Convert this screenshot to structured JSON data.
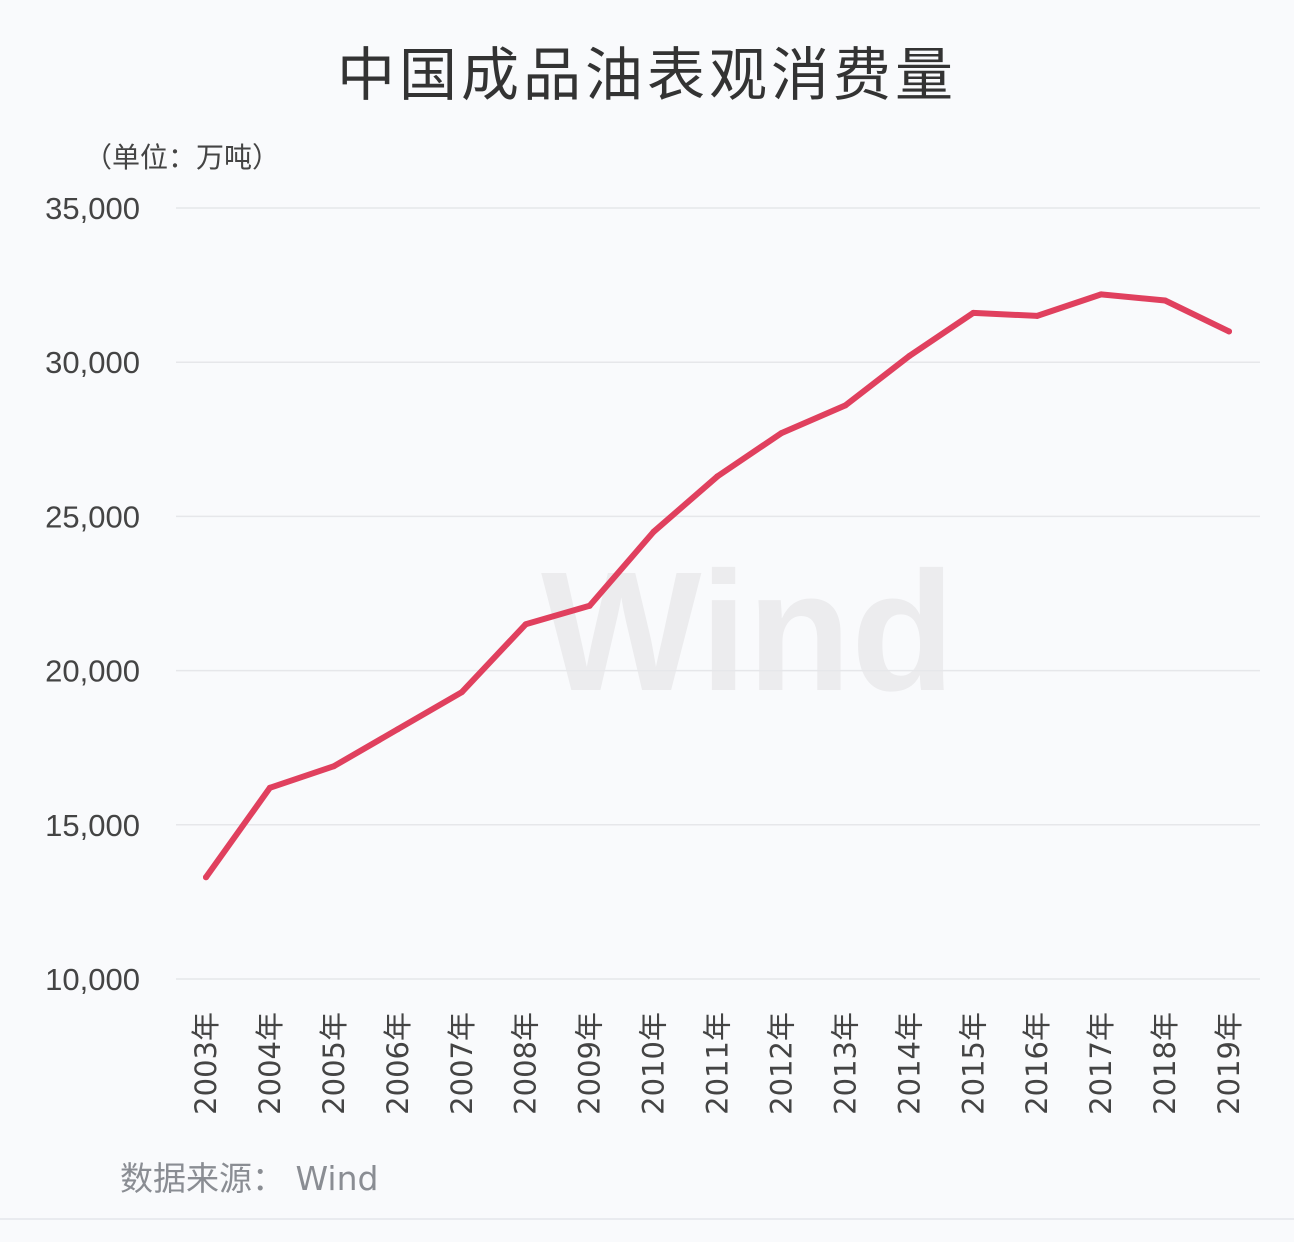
{
  "colors": {
    "line": "#e0405e",
    "grid": "#e6e7ea",
    "axis_text": "#444444",
    "watermark": "#ececee"
  },
  "chart_data": {
    "type": "line",
    "title": "中国成品油表观消费量",
    "ylabel": "（单位：万吨）",
    "source": "数据来源： Wind",
    "watermark": "Wind",
    "ylim": [
      10000,
      35000
    ],
    "yticks": [
      35000,
      30000,
      25000,
      20000,
      15000,
      10000
    ],
    "ytick_labels": [
      "35,000",
      "30,000",
      "25,000",
      "20,000",
      "15,000",
      "10,000"
    ],
    "grid": true,
    "categories": [
      "2003年",
      "2004年",
      "2005年",
      "2006年",
      "2007年",
      "2008年",
      "2009年",
      "2010年",
      "2011年",
      "2012年",
      "2013年",
      "2014年",
      "2015年",
      "2016年",
      "2017年",
      "2018年",
      "2019年"
    ],
    "series": [
      {
        "values": [
          13300,
          16200,
          16900,
          18100,
          19300,
          21500,
          22100,
          24500,
          26300,
          27700,
          28600,
          30200,
          31600,
          31500,
          32200,
          32000,
          31000
        ]
      }
    ]
  }
}
